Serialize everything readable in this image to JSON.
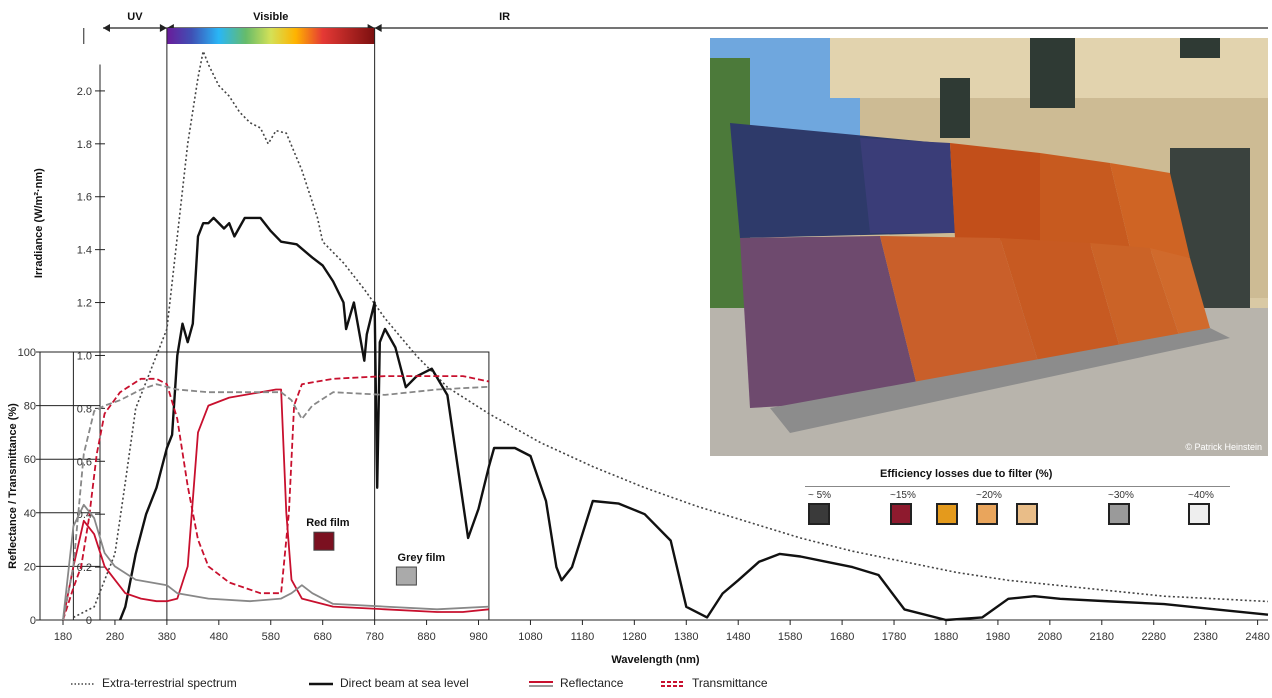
{
  "chart_data": {
    "type": "line",
    "xlabel": "Wavelength (nm)",
    "xlim": [
      180,
      2500
    ],
    "x_ticks": [
      180,
      280,
      380,
      480,
      580,
      680,
      780,
      880,
      980,
      1080,
      1180,
      1280,
      1380,
      1480,
      1580,
      1680,
      1780,
      1880,
      1980,
      2080,
      2180,
      2280,
      2380,
      2480
    ],
    "regions": [
      {
        "label": "UV",
        "range": [
          180,
          380
        ]
      },
      {
        "label": "Visible",
        "range": [
          380,
          780
        ]
      },
      {
        "label": "IR",
        "range": [
          780,
          2500
        ]
      }
    ],
    "upper_axis": {
      "label": "Irradiance (W/m²·nm)",
      "ylim": [
        0,
        2.2
      ],
      "ticks": [
        "2.0",
        "1.8",
        "1.6",
        "1.4",
        "1.2",
        "1.0",
        "0.8",
        "0.6",
        "0.4",
        "0.2",
        "0"
      ]
    },
    "lower_axis": {
      "label": "Reflectance / Transmittance (%)",
      "ylim": [
        0,
        100
      ],
      "ticks": [
        "100",
        "80",
        "60",
        "40",
        "20",
        "0"
      ]
    },
    "series": [
      {
        "name": "Extra-terrestrial spectrum",
        "axis": "irradiance",
        "color": "#444444",
        "style": "dotted",
        "points": [
          [
            200,
            0.01
          ],
          [
            240,
            0.05
          ],
          [
            280,
            0.25
          ],
          [
            300,
            0.52
          ],
          [
            320,
            0.8
          ],
          [
            350,
            0.95
          ],
          [
            380,
            1.1
          ],
          [
            400,
            1.45
          ],
          [
            420,
            1.8
          ],
          [
            440,
            2.05
          ],
          [
            450,
            2.15
          ],
          [
            460,
            2.1
          ],
          [
            480,
            2.02
          ],
          [
            500,
            1.98
          ],
          [
            520,
            1.92
          ],
          [
            540,
            1.88
          ],
          [
            560,
            1.86
          ],
          [
            575,
            1.8
          ],
          [
            590,
            1.85
          ],
          [
            610,
            1.84
          ],
          [
            640,
            1.7
          ],
          [
            670,
            1.52
          ],
          [
            680,
            1.43
          ],
          [
            720,
            1.35
          ],
          [
            760,
            1.25
          ],
          [
            800,
            1.14
          ],
          [
            860,
            1.0
          ],
          [
            920,
            0.88
          ],
          [
            1000,
            0.78
          ],
          [
            1100,
            0.67
          ],
          [
            1200,
            0.58
          ],
          [
            1300,
            0.5
          ],
          [
            1400,
            0.43
          ],
          [
            1500,
            0.37
          ],
          [
            1600,
            0.31
          ],
          [
            1700,
            0.26
          ],
          [
            1800,
            0.22
          ],
          [
            1900,
            0.18
          ],
          [
            2000,
            0.15
          ],
          [
            2100,
            0.13
          ],
          [
            2200,
            0.11
          ],
          [
            2300,
            0.09
          ],
          [
            2400,
            0.08
          ],
          [
            2500,
            0.07
          ]
        ]
      },
      {
        "name": "Direct beam at sea level",
        "axis": "irradiance",
        "color": "#111111",
        "style": "solid",
        "points": [
          [
            290,
            0.0
          ],
          [
            300,
            0.05
          ],
          [
            320,
            0.25
          ],
          [
            340,
            0.4
          ],
          [
            360,
            0.5
          ],
          [
            380,
            0.65
          ],
          [
            390,
            0.7
          ],
          [
            400,
            1.0
          ],
          [
            410,
            1.12
          ],
          [
            420,
            1.05
          ],
          [
            430,
            1.12
          ],
          [
            440,
            1.45
          ],
          [
            450,
            1.5
          ],
          [
            460,
            1.5
          ],
          [
            470,
            1.52
          ],
          [
            490,
            1.48
          ],
          [
            500,
            1.5
          ],
          [
            510,
            1.45
          ],
          [
            530,
            1.52
          ],
          [
            560,
            1.52
          ],
          [
            580,
            1.47
          ],
          [
            600,
            1.43
          ],
          [
            630,
            1.42
          ],
          [
            660,
            1.37
          ],
          [
            680,
            1.34
          ],
          [
            700,
            1.28
          ],
          [
            720,
            1.2
          ],
          [
            725,
            1.1
          ],
          [
            740,
            1.2
          ],
          [
            760,
            0.98
          ],
          [
            765,
            1.08
          ],
          [
            780,
            1.2
          ],
          [
            785,
            0.5
          ],
          [
            790,
            1.05
          ],
          [
            800,
            1.1
          ],
          [
            820,
            1.03
          ],
          [
            840,
            0.88
          ],
          [
            860,
            0.92
          ],
          [
            890,
            0.95
          ],
          [
            920,
            0.85
          ],
          [
            940,
            0.58
          ],
          [
            960,
            0.31
          ],
          [
            980,
            0.42
          ],
          [
            1000,
            0.58
          ],
          [
            1010,
            0.65
          ],
          [
            1050,
            0.65
          ],
          [
            1080,
            0.62
          ],
          [
            1110,
            0.45
          ],
          [
            1130,
            0.2
          ],
          [
            1140,
            0.15
          ],
          [
            1160,
            0.2
          ],
          [
            1200,
            0.45
          ],
          [
            1250,
            0.44
          ],
          [
            1300,
            0.4
          ],
          [
            1350,
            0.3
          ],
          [
            1380,
            0.05
          ],
          [
            1420,
            0.01
          ],
          [
            1450,
            0.1
          ],
          [
            1480,
            0.15
          ],
          [
            1520,
            0.22
          ],
          [
            1560,
            0.25
          ],
          [
            1600,
            0.24
          ],
          [
            1650,
            0.22
          ],
          [
            1700,
            0.2
          ],
          [
            1750,
            0.17
          ],
          [
            1800,
            0.04
          ],
          [
            1880,
            0.0
          ],
          [
            1950,
            0.01
          ],
          [
            2000,
            0.08
          ],
          [
            2050,
            0.09
          ],
          [
            2100,
            0.08
          ],
          [
            2200,
            0.07
          ],
          [
            2300,
            0.06
          ],
          [
            2400,
            0.04
          ],
          [
            2500,
            0.02
          ]
        ]
      },
      {
        "name": "Red film reflectance",
        "axis": "percent",
        "color": "#c8102e",
        "style": "solid",
        "points": [
          [
            180,
            0
          ],
          [
            200,
            20
          ],
          [
            220,
            37
          ],
          [
            240,
            32
          ],
          [
            260,
            20
          ],
          [
            280,
            15
          ],
          [
            300,
            10
          ],
          [
            330,
            8
          ],
          [
            360,
            7
          ],
          [
            380,
            7
          ],
          [
            400,
            8
          ],
          [
            420,
            20
          ],
          [
            440,
            70
          ],
          [
            460,
            80
          ],
          [
            500,
            83
          ],
          [
            560,
            85
          ],
          [
            590,
            86
          ],
          [
            600,
            86
          ],
          [
            610,
            40
          ],
          [
            620,
            15
          ],
          [
            640,
            8
          ],
          [
            700,
            5
          ],
          [
            800,
            4
          ],
          [
            900,
            3
          ],
          [
            950,
            3
          ],
          [
            1000,
            4
          ]
        ]
      },
      {
        "name": "Red film transmittance",
        "axis": "percent",
        "color": "#c8102e",
        "style": "dashed",
        "points": [
          [
            180,
            0
          ],
          [
            200,
            12
          ],
          [
            215,
            20
          ],
          [
            230,
            38
          ],
          [
            245,
            62
          ],
          [
            260,
            77
          ],
          [
            290,
            85
          ],
          [
            330,
            90
          ],
          [
            360,
            90
          ],
          [
            380,
            88
          ],
          [
            400,
            75
          ],
          [
            420,
            50
          ],
          [
            440,
            30
          ],
          [
            460,
            20
          ],
          [
            500,
            14
          ],
          [
            560,
            10
          ],
          [
            600,
            10
          ],
          [
            615,
            40
          ],
          [
            625,
            80
          ],
          [
            640,
            88
          ],
          [
            700,
            90
          ],
          [
            800,
            91
          ],
          [
            900,
            91
          ],
          [
            950,
            91
          ],
          [
            1000,
            89
          ]
        ]
      },
      {
        "name": "Grey film reflectance",
        "axis": "percent",
        "color": "#888888",
        "style": "solid",
        "points": [
          [
            180,
            0
          ],
          [
            200,
            35
          ],
          [
            220,
            43
          ],
          [
            240,
            38
          ],
          [
            260,
            25
          ],
          [
            280,
            20
          ],
          [
            320,
            15
          ],
          [
            380,
            13
          ],
          [
            400,
            10
          ],
          [
            460,
            8
          ],
          [
            540,
            7
          ],
          [
            600,
            8
          ],
          [
            620,
            10
          ],
          [
            640,
            13
          ],
          [
            660,
            10
          ],
          [
            700,
            6
          ],
          [
            800,
            5
          ],
          [
            900,
            4
          ],
          [
            1000,
            5
          ]
        ]
      },
      {
        "name": "Grey film transmittance",
        "axis": "percent",
        "color": "#888888",
        "style": "dashed",
        "points": [
          [
            180,
            0
          ],
          [
            200,
            20
          ],
          [
            220,
            62
          ],
          [
            240,
            78
          ],
          [
            260,
            80
          ],
          [
            290,
            82
          ],
          [
            330,
            86
          ],
          [
            360,
            88
          ],
          [
            380,
            87
          ],
          [
            400,
            86
          ],
          [
            460,
            85
          ],
          [
            520,
            85
          ],
          [
            600,
            85
          ],
          [
            620,
            82
          ],
          [
            640,
            75
          ],
          [
            660,
            80
          ],
          [
            700,
            85
          ],
          [
            800,
            84
          ],
          [
            900,
            86
          ],
          [
            1000,
            87
          ]
        ]
      }
    ],
    "annotations": [
      {
        "text": "Red film",
        "x": 690,
        "y": 35,
        "axis": "percent"
      },
      {
        "text": "Grey film",
        "x": 870,
        "y": 22,
        "axis": "percent"
      }
    ]
  },
  "legend": [
    {
      "label": "Extra-terrestrial spectrum",
      "style": "dotted",
      "color": "#444444"
    },
    {
      "label": "Direct beam at sea level",
      "style": "solid",
      "color": "#111111"
    },
    {
      "label": "Reflectance",
      "style": "double",
      "color": "#c8102e"
    },
    {
      "label": "Transmittance",
      "style": "dashed",
      "color": "#c8102e"
    }
  ],
  "photo": {
    "credit": "© Patrick Heinstein"
  },
  "efficiency": {
    "title": "Efficiency losses due to filter (%)",
    "items": [
      {
        "label": "~ 5%",
        "color": "#3a3a3a"
      },
      {
        "label": "~15%",
        "color": "#8e1a2e"
      },
      {
        "label": "",
        "color": "#e49a1c"
      },
      {
        "label": "~20%",
        "color": "#e9a55c"
      },
      {
        "label": "",
        "color": "#e9bd88"
      },
      {
        "label": "~30%",
        "color": "#9a9a9a"
      },
      {
        "label": "~40%",
        "color": "#eeeeee"
      }
    ]
  }
}
